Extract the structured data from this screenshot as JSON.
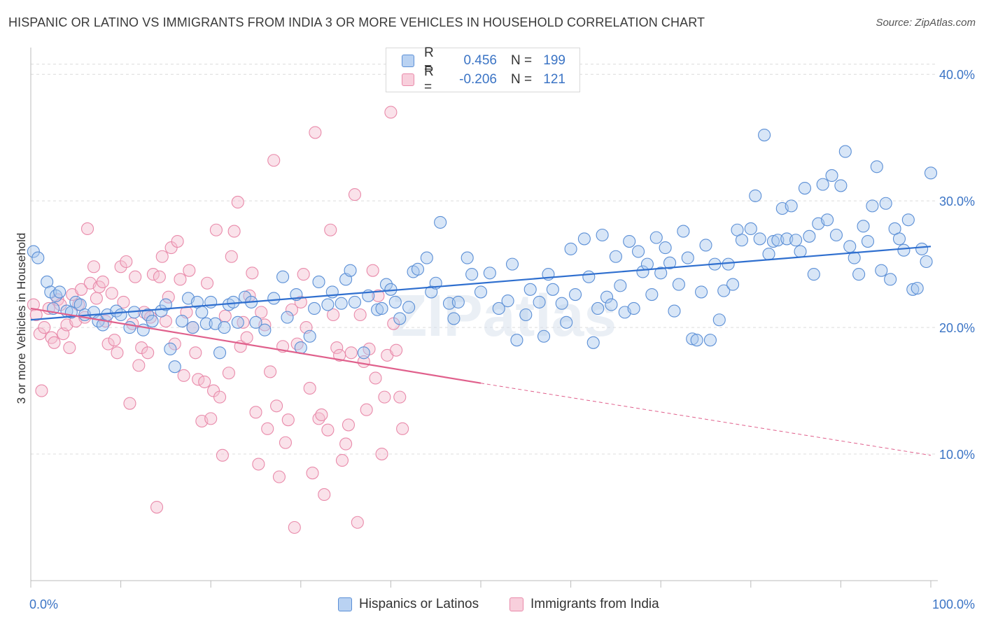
{
  "header": {
    "title": "HISPANIC OR LATINO VS IMMIGRANTS FROM INDIA 3 OR MORE VEHICLES IN HOUSEHOLD CORRELATION CHART",
    "source": "Source: ZipAtlas.com"
  },
  "watermark": "ZIPatlas",
  "legend": {
    "rows": [
      {
        "r_label": "R =",
        "r_value": "0.456",
        "n_label": "N =",
        "n_value": "199"
      },
      {
        "r_label": "R =",
        "r_value": "-0.206",
        "n_label": "N =",
        "n_value": "121"
      }
    ]
  },
  "bottom_legend": {
    "series1": "Hispanics or Latinos",
    "series2": "Immigrants from India"
  },
  "colors": {
    "blue_stroke": "#5b8fd6",
    "blue_fill": "#a9c7ee",
    "blue_line": "#2f6fcf",
    "pink_stroke": "#e98aaa",
    "pink_fill": "#f5bfd1",
    "pink_line": "#e0608c",
    "tick_text": "#3b74c5",
    "grid": "#dcdcdc"
  },
  "chart_data": {
    "type": "scatter",
    "title": "HISPANIC OR LATINO VS IMMIGRANTS FROM INDIA 3 OR MORE VEHICLES IN HOUSEHOLD CORRELATION CHART",
    "xlabel": "",
    "ylabel": "3 or more Vehicles in Household",
    "xlim": [
      0,
      100
    ],
    "ylim": [
      0,
      42
    ],
    "x_tick_labels": [
      {
        "value": 0,
        "label": "0.0%"
      },
      {
        "value": 100,
        "label": "100.0%"
      }
    ],
    "y_ticks": [
      {
        "value": 10,
        "label": "10.0%"
      },
      {
        "value": 20,
        "label": "20.0%"
      },
      {
        "value": 30,
        "label": "30.0%"
      },
      {
        "value": 40,
        "label": "40.0%"
      }
    ],
    "series": [
      {
        "name": "Hispanics or Latinos",
        "color": "blue",
        "R": 0.456,
        "N": 199,
        "trend": {
          "x0": 0,
          "y0": 20.6,
          "x1": 100,
          "y1": 26.4
        },
        "points": [
          [
            0.3,
            26.0
          ],
          [
            0.8,
            25.5
          ],
          [
            1.8,
            23.6
          ],
          [
            2.2,
            22.8
          ],
          [
            2.5,
            21.5
          ],
          [
            2.8,
            22.5
          ],
          [
            3.2,
            22.8
          ],
          [
            4.0,
            21.3
          ],
          [
            4.5,
            21.2
          ],
          [
            5.0,
            22.0
          ],
          [
            5.5,
            21.8
          ],
          [
            6.0,
            21.0
          ],
          [
            7.0,
            21.2
          ],
          [
            7.5,
            20.5
          ],
          [
            8.0,
            20.2
          ],
          [
            8.5,
            21.0
          ],
          [
            9.5,
            21.3
          ],
          [
            10.0,
            21.0
          ],
          [
            11.0,
            20.0
          ],
          [
            11.5,
            21.2
          ],
          [
            12.5,
            19.8
          ],
          [
            13.0,
            21.0
          ],
          [
            13.5,
            20.5
          ],
          [
            14.5,
            21.3
          ],
          [
            15.0,
            21.8
          ],
          [
            15.5,
            18.3
          ],
          [
            16.0,
            16.9
          ],
          [
            16.8,
            20.5
          ],
          [
            17.5,
            22.3
          ],
          [
            18.0,
            20.0
          ],
          [
            18.5,
            22.0
          ],
          [
            19.0,
            21.2
          ],
          [
            19.5,
            20.3
          ],
          [
            20.0,
            22.0
          ],
          [
            20.5,
            20.3
          ],
          [
            21.0,
            18.0
          ],
          [
            21.5,
            20.0
          ],
          [
            22.0,
            21.8
          ],
          [
            22.5,
            22.0
          ],
          [
            23.0,
            20.4
          ],
          [
            23.8,
            22.4
          ],
          [
            24.5,
            22.0
          ],
          [
            25.0,
            20.4
          ],
          [
            26.0,
            19.8
          ],
          [
            27.0,
            22.3
          ],
          [
            28.0,
            24.0
          ],
          [
            28.5,
            20.8
          ],
          [
            29.5,
            22.6
          ],
          [
            30.0,
            18.4
          ],
          [
            31.0,
            19.3
          ],
          [
            31.5,
            21.5
          ],
          [
            32.0,
            23.6
          ],
          [
            33.0,
            21.8
          ],
          [
            33.5,
            22.8
          ],
          [
            34.5,
            21.9
          ],
          [
            35.0,
            23.8
          ],
          [
            35.5,
            24.5
          ],
          [
            36.0,
            22.0
          ],
          [
            37.0,
            18.0
          ],
          [
            37.5,
            22.5
          ],
          [
            38.5,
            21.4
          ],
          [
            39.0,
            21.5
          ],
          [
            39.5,
            23.4
          ],
          [
            40.0,
            23.0
          ],
          [
            40.5,
            22.0
          ],
          [
            41.0,
            20.7
          ],
          [
            42.0,
            21.6
          ],
          [
            42.5,
            24.4
          ],
          [
            43.0,
            24.6
          ],
          [
            44.0,
            25.5
          ],
          [
            44.5,
            22.8
          ],
          [
            45.0,
            23.5
          ],
          [
            45.5,
            28.3
          ],
          [
            46.5,
            21.9
          ],
          [
            47.0,
            20.7
          ],
          [
            47.5,
            22.0
          ],
          [
            48.5,
            25.5
          ],
          [
            49.0,
            24.2
          ],
          [
            50.0,
            22.8
          ],
          [
            51.0,
            24.3
          ],
          [
            52.0,
            21.5
          ],
          [
            53.0,
            22.1
          ],
          [
            53.5,
            25.0
          ],
          [
            54.0,
            19.0
          ],
          [
            55.0,
            21.0
          ],
          [
            55.5,
            23.0
          ],
          [
            56.5,
            22.0
          ],
          [
            57.0,
            19.3
          ],
          [
            57.5,
            24.2
          ],
          [
            58.0,
            23.0
          ],
          [
            59.0,
            21.9
          ],
          [
            59.5,
            20.4
          ],
          [
            60.0,
            26.2
          ],
          [
            60.5,
            22.6
          ],
          [
            61.5,
            27.0
          ],
          [
            62.0,
            24.0
          ],
          [
            62.5,
            18.8
          ],
          [
            63.0,
            21.5
          ],
          [
            63.5,
            27.3
          ],
          [
            64.0,
            22.4
          ],
          [
            64.5,
            21.8
          ],
          [
            65.0,
            25.6
          ],
          [
            65.5,
            23.3
          ],
          [
            66.0,
            21.2
          ],
          [
            66.5,
            26.8
          ],
          [
            67.0,
            21.5
          ],
          [
            67.5,
            26.0
          ],
          [
            68.0,
            24.4
          ],
          [
            68.5,
            25.0
          ],
          [
            69.0,
            22.6
          ],
          [
            69.5,
            27.1
          ],
          [
            70.0,
            24.3
          ],
          [
            70.5,
            26.3
          ],
          [
            71.0,
            25.1
          ],
          [
            71.5,
            21.3
          ],
          [
            72.0,
            23.4
          ],
          [
            72.5,
            27.6
          ],
          [
            73.0,
            25.5
          ],
          [
            73.5,
            19.1
          ],
          [
            74.0,
            19.0
          ],
          [
            74.5,
            22.8
          ],
          [
            75.0,
            26.5
          ],
          [
            75.5,
            19.0
          ],
          [
            76.0,
            25.0
          ],
          [
            76.5,
            20.6
          ],
          [
            77.0,
            22.9
          ],
          [
            77.5,
            25.0
          ],
          [
            78.0,
            23.4
          ],
          [
            78.5,
            27.7
          ],
          [
            79.0,
            26.9
          ],
          [
            80.0,
            27.8
          ],
          [
            80.5,
            30.4
          ],
          [
            81.0,
            27.0
          ],
          [
            81.5,
            35.2
          ],
          [
            82.0,
            25.8
          ],
          [
            82.5,
            26.8
          ],
          [
            83.0,
            26.9
          ],
          [
            83.5,
            29.4
          ],
          [
            84.0,
            27.0
          ],
          [
            84.5,
            29.6
          ],
          [
            85.0,
            26.9
          ],
          [
            85.5,
            26.0
          ],
          [
            86.0,
            31.0
          ],
          [
            86.5,
            27.2
          ],
          [
            87.0,
            24.2
          ],
          [
            87.5,
            28.2
          ],
          [
            88.0,
            31.3
          ],
          [
            88.5,
            28.5
          ],
          [
            89.0,
            32.0
          ],
          [
            89.5,
            27.3
          ],
          [
            90.0,
            31.2
          ],
          [
            90.5,
            33.9
          ],
          [
            91.0,
            26.4
          ],
          [
            91.5,
            25.5
          ],
          [
            92.0,
            24.2
          ],
          [
            92.5,
            28.0
          ],
          [
            93.0,
            26.8
          ],
          [
            93.5,
            29.6
          ],
          [
            94.0,
            32.7
          ],
          [
            94.5,
            24.5
          ],
          [
            95.0,
            29.8
          ],
          [
            95.5,
            23.8
          ],
          [
            96.0,
            27.8
          ],
          [
            96.5,
            27.0
          ],
          [
            97.0,
            26.1
          ],
          [
            97.5,
            28.5
          ],
          [
            98.0,
            23.0
          ],
          [
            98.5,
            23.1
          ],
          [
            99.0,
            26.2
          ],
          [
            99.5,
            25.2
          ],
          [
            100.0,
            32.2
          ]
        ]
      },
      {
        "name": "Immigrants from India",
        "color": "pink",
        "R": -0.206,
        "N": 121,
        "trend": {
          "x0": 0,
          "y0": 21.5,
          "x1": 50,
          "y1": 15.6
        },
        "trend_dashed_extension": {
          "x0": 50,
          "y0": 15.6,
          "x1": 100,
          "y1": 9.9
        },
        "points": [
          [
            0.3,
            21.8
          ],
          [
            0.6,
            21.0
          ],
          [
            1.0,
            19.5
          ],
          [
            1.2,
            15.0
          ],
          [
            1.5,
            20.0
          ],
          [
            2.0,
            21.5
          ],
          [
            2.3,
            19.2
          ],
          [
            2.6,
            18.8
          ],
          [
            3.0,
            22.2
          ],
          [
            3.3,
            21.8
          ],
          [
            3.6,
            19.5
          ],
          [
            4.0,
            20.2
          ],
          [
            4.3,
            18.4
          ],
          [
            4.6,
            22.6
          ],
          [
            5.0,
            20.5
          ],
          [
            5.3,
            21.8
          ],
          [
            5.6,
            23.0
          ],
          [
            6.0,
            20.8
          ],
          [
            6.3,
            27.8
          ],
          [
            6.6,
            23.5
          ],
          [
            7.0,
            24.8
          ],
          [
            7.3,
            22.3
          ],
          [
            7.6,
            23.2
          ],
          [
            8.0,
            23.6
          ],
          [
            8.3,
            20.5
          ],
          [
            8.6,
            18.7
          ],
          [
            9.0,
            22.7
          ],
          [
            9.3,
            19.0
          ],
          [
            9.6,
            18.0
          ],
          [
            10.0,
            24.8
          ],
          [
            10.3,
            22.0
          ],
          [
            10.6,
            25.2
          ],
          [
            11.0,
            14.0
          ],
          [
            11.3,
            20.3
          ],
          [
            11.6,
            24.0
          ],
          [
            12.0,
            17.0
          ],
          [
            12.3,
            18.4
          ],
          [
            12.6,
            21.2
          ],
          [
            13.0,
            18.0
          ],
          [
            13.3,
            20.8
          ],
          [
            13.6,
            24.2
          ],
          [
            14.0,
            5.8
          ],
          [
            14.3,
            24.0
          ],
          [
            14.6,
            25.6
          ],
          [
            15.0,
            20.5
          ],
          [
            15.3,
            22.4
          ],
          [
            15.6,
            26.3
          ],
          [
            16.0,
            18.7
          ],
          [
            16.3,
            26.8
          ],
          [
            16.6,
            23.8
          ],
          [
            17.0,
            16.2
          ],
          [
            17.3,
            21.2
          ],
          [
            17.6,
            24.5
          ],
          [
            18.0,
            20.0
          ],
          [
            18.3,
            18.0
          ],
          [
            18.6,
            15.9
          ],
          [
            19.0,
            12.6
          ],
          [
            19.3,
            15.7
          ],
          [
            19.6,
            23.5
          ],
          [
            20.0,
            12.8
          ],
          [
            20.3,
            15.0
          ],
          [
            20.6,
            27.7
          ],
          [
            21.0,
            14.5
          ],
          [
            21.3,
            9.9
          ],
          [
            21.6,
            20.9
          ],
          [
            22.0,
            16.4
          ],
          [
            22.3,
            25.6
          ],
          [
            22.6,
            27.6
          ],
          [
            23.0,
            29.9
          ],
          [
            23.3,
            18.5
          ],
          [
            23.6,
            20.4
          ],
          [
            24.0,
            19.2
          ],
          [
            24.3,
            22.5
          ],
          [
            24.6,
            24.3
          ],
          [
            25.0,
            13.3
          ],
          [
            25.3,
            9.2
          ],
          [
            25.6,
            21.2
          ],
          [
            26.0,
            20.2
          ],
          [
            26.3,
            12.0
          ],
          [
            26.6,
            16.5
          ],
          [
            27.0,
            33.2
          ],
          [
            27.3,
            13.8
          ],
          [
            27.6,
            8.2
          ],
          [
            28.0,
            18.5
          ],
          [
            28.3,
            10.9
          ],
          [
            28.6,
            12.7
          ],
          [
            29.0,
            21.4
          ],
          [
            29.3,
            4.2
          ],
          [
            29.6,
            18.7
          ],
          [
            30.0,
            22.0
          ],
          [
            30.3,
            24.2
          ],
          [
            30.6,
            20.0
          ],
          [
            31.0,
            15.2
          ],
          [
            31.3,
            8.5
          ],
          [
            31.6,
            35.4
          ],
          [
            32.0,
            12.8
          ],
          [
            32.3,
            13.1
          ],
          [
            32.6,
            6.8
          ],
          [
            33.0,
            11.9
          ],
          [
            33.3,
            27.7
          ],
          [
            33.6,
            21.0
          ],
          [
            34.0,
            18.4
          ],
          [
            34.3,
            17.8
          ],
          [
            34.6,
            9.5
          ],
          [
            35.0,
            10.8
          ],
          [
            35.3,
            12.3
          ],
          [
            35.6,
            18.0
          ],
          [
            36.0,
            30.5
          ],
          [
            36.3,
            4.6
          ],
          [
            36.6,
            21.0
          ],
          [
            37.0,
            17.3
          ],
          [
            37.3,
            13.5
          ],
          [
            37.6,
            18.3
          ],
          [
            38.0,
            24.5
          ],
          [
            38.3,
            16.0
          ],
          [
            38.6,
            22.5
          ],
          [
            39.0,
            10.0
          ],
          [
            39.3,
            14.5
          ],
          [
            39.6,
            17.8
          ],
          [
            40.0,
            37.0
          ],
          [
            40.3,
            20.3
          ],
          [
            40.6,
            18.2
          ],
          [
            41.0,
            14.5
          ],
          [
            41.3,
            12.0
          ]
        ]
      }
    ]
  }
}
